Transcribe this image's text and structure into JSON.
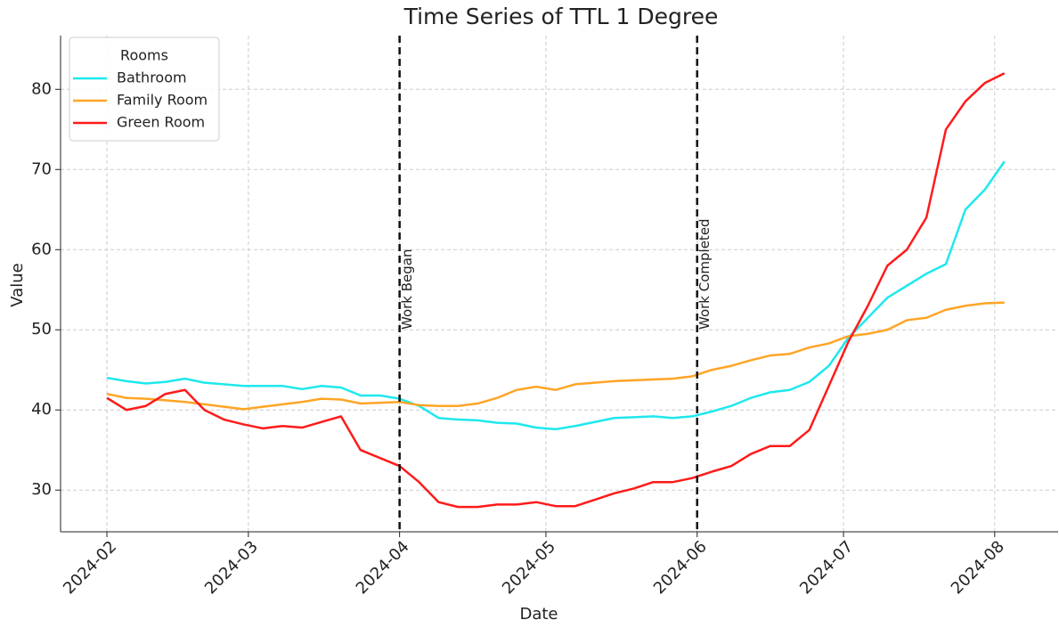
{
  "chart_data": {
    "type": "line",
    "title": "Time Series of TTL 1 Degree",
    "xlabel": "Date",
    "ylabel": "Value",
    "x": [
      0,
      4,
      8,
      12,
      16,
      20,
      24,
      28,
      32,
      36,
      40,
      44,
      48,
      52,
      56,
      60,
      64,
      68,
      72,
      76,
      80,
      84,
      88,
      92,
      96,
      100,
      104,
      108,
      112,
      116,
      120,
      124,
      128,
      132,
      136,
      140,
      144,
      148,
      152,
      156,
      160,
      164,
      168,
      172,
      176,
      180,
      184
    ],
    "series": [
      {
        "name": "Bathroom",
        "color": "#1ee8ee",
        "values": [
          44,
          43.6,
          43.3,
          43.5,
          43.9,
          43.4,
          43.2,
          43,
          43,
          43,
          42.6,
          43,
          42.8,
          41.8,
          41.8,
          41.4,
          40.5,
          39,
          38.8,
          38.7,
          38.4,
          38.3,
          37.8,
          37.6,
          38,
          38.5,
          39,
          39.1,
          39.2,
          39,
          39.2,
          39.8,
          40.5,
          41.5,
          42.2,
          42.5,
          43.5,
          45.5,
          49,
          51.5,
          54,
          55.5,
          57,
          58.2,
          65,
          67.5,
          71
        ]
      },
      {
        "name": "Family Room",
        "color": "#ffa526",
        "values": [
          42,
          41.5,
          41.4,
          41.2,
          41,
          40.7,
          40.4,
          40.1,
          40.4,
          40.7,
          41,
          41.4,
          41.3,
          40.8,
          40.9,
          41,
          40.6,
          40.5,
          40.5,
          40.8,
          41.5,
          42.5,
          42.9,
          42.5,
          43.2,
          43.4,
          43.6,
          43.7,
          43.8,
          43.9,
          44.2,
          45,
          45.5,
          46.2,
          46.8,
          47,
          47.8,
          48.3,
          49.2,
          49.5,
          50,
          51.2,
          51.5,
          52.5,
          53,
          53.3,
          53.4
        ]
      },
      {
        "name": "Green Room",
        "color": "#ff1a1a",
        "values": [
          41.5,
          40,
          40.5,
          42,
          42.5,
          40,
          38.8,
          38.2,
          37.7,
          38,
          37.8,
          38.5,
          39.2,
          35,
          34,
          33,
          31,
          28.5,
          27.9,
          27.9,
          28.2,
          28.2,
          28.5,
          28,
          28,
          28.8,
          29.6,
          30.2,
          31,
          31,
          31.5,
          32.3,
          33,
          34.5,
          35.5,
          35.5,
          37.5,
          43,
          48.5,
          53,
          58,
          60,
          64,
          75,
          78.5,
          80.8,
          82
        ]
      }
    ],
    "legend_title": "Rooms",
    "legend": "upper left",
    "grid": true,
    "xlim": [
      -9.5,
      195
    ],
    "ylim": [
      24.8,
      86.7
    ],
    "xticks": [
      {
        "value": 0,
        "label": "2024-02"
      },
      {
        "value": 29,
        "label": "2024-03"
      },
      {
        "value": 60,
        "label": "2024-04"
      },
      {
        "value": 90,
        "label": "2024-05"
      },
      {
        "value": 121,
        "label": "2024-06"
      },
      {
        "value": 151,
        "label": "2024-07"
      },
      {
        "value": 182,
        "label": "2024-08"
      }
    ],
    "yticks": [
      30,
      40,
      50,
      60,
      70,
      80
    ],
    "vlines": [
      {
        "x": 60,
        "label": "Work Began"
      },
      {
        "x": 121,
        "label": "Work Completed"
      }
    ]
  }
}
